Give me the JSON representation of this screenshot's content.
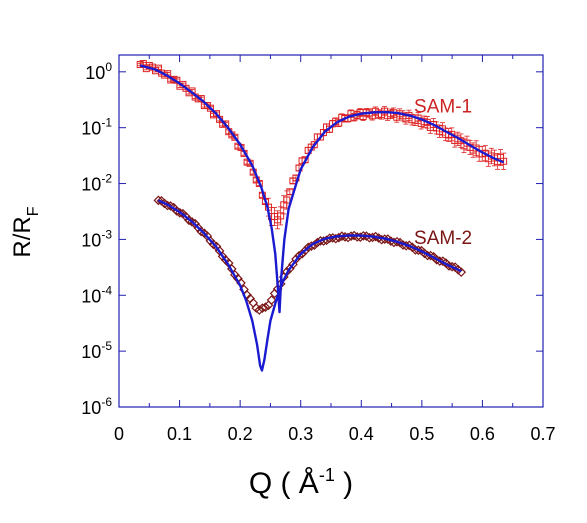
{
  "chart_data": {
    "type": "scatter",
    "title": "",
    "xlabel": {
      "main": "Q ( Å",
      "sup": "-1",
      "close": " )"
    },
    "ylabel": {
      "main": "R/R",
      "sub": "F"
    },
    "xlim": [
      0,
      0.7
    ],
    "ylim": [
      1e-06,
      2
    ],
    "yscale": "log",
    "grid": false,
    "legend": "none",
    "x_ticks": [
      "0",
      "0.1",
      "0.2",
      "0.3",
      "0.4",
      "0.5",
      "0.6",
      "0.7"
    ],
    "x_tick_values": [
      0,
      0.1,
      0.2,
      0.3,
      0.4,
      0.5,
      0.6,
      0.7
    ],
    "y_ticks": [
      {
        "base": "10",
        "exp": "0",
        "value": 1
      },
      {
        "base": "10",
        "exp": "-1",
        "value": 0.1
      },
      {
        "base": "10",
        "exp": "-2",
        "value": 0.01
      },
      {
        "base": "10",
        "exp": "-3",
        "value": 0.001
      },
      {
        "base": "10",
        "exp": "-4",
        "value": 0.0001
      },
      {
        "base": "10",
        "exp": "-5",
        "value": 1e-05
      },
      {
        "base": "10",
        "exp": "-6",
        "value": 1e-06
      }
    ],
    "annotations": [
      {
        "text": "SAM-1",
        "x": 0.535,
        "y": 0.25,
        "color": "#cc2222"
      },
      {
        "text": "SAM-2",
        "x": 0.535,
        "y": 0.0011,
        "color": "#7a1515"
      }
    ],
    "series": [
      {
        "label": "SAM-1",
        "kind": "points_with_errorbars",
        "marker": "square",
        "color": "#dd2222",
        "anchors": [
          [
            0.035,
            1.35
          ],
          [
            0.06,
            1.15
          ],
          [
            0.08,
            0.85
          ],
          [
            0.1,
            0.62
          ],
          [
            0.12,
            0.42
          ],
          [
            0.14,
            0.28
          ],
          [
            0.16,
            0.17
          ],
          [
            0.18,
            0.095
          ],
          [
            0.2,
            0.045
          ],
          [
            0.22,
            0.018
          ],
          [
            0.235,
            0.0075
          ],
          [
            0.245,
            0.0038
          ],
          [
            0.255,
            0.0025
          ],
          [
            0.262,
            0.0022
          ],
          [
            0.272,
            0.0038
          ],
          [
            0.285,
            0.009
          ],
          [
            0.3,
            0.022
          ],
          [
            0.32,
            0.05
          ],
          [
            0.34,
            0.09
          ],
          [
            0.36,
            0.13
          ],
          [
            0.38,
            0.16
          ],
          [
            0.4,
            0.175
          ],
          [
            0.42,
            0.18
          ],
          [
            0.44,
            0.18
          ],
          [
            0.46,
            0.17
          ],
          [
            0.48,
            0.15
          ],
          [
            0.5,
            0.13
          ],
          [
            0.52,
            0.105
          ],
          [
            0.54,
            0.08
          ],
          [
            0.56,
            0.06
          ],
          [
            0.58,
            0.045
          ],
          [
            0.6,
            0.034
          ],
          [
            0.62,
            0.028
          ],
          [
            0.635,
            0.026
          ]
        ],
        "x_range": [
          0.035,
          0.635
        ],
        "n_points": 120
      },
      {
        "label": "SAM-2",
        "kind": "points",
        "marker": "diamond",
        "color": "#7a1515",
        "anchors": [
          [
            0.065,
            0.005
          ],
          [
            0.08,
            0.0042
          ],
          [
            0.1,
            0.0031
          ],
          [
            0.12,
            0.0021
          ],
          [
            0.14,
            0.0013
          ],
          [
            0.16,
            0.00075
          ],
          [
            0.18,
            0.00038
          ],
          [
            0.2,
            0.00017
          ],
          [
            0.215,
            9e-05
          ],
          [
            0.225,
            6.3e-05
          ],
          [
            0.232,
            5.5e-05
          ],
          [
            0.24,
            5.8e-05
          ],
          [
            0.25,
            7.5e-05
          ],
          [
            0.26,
            0.00012
          ],
          [
            0.27,
            0.00019
          ],
          [
            0.28,
            0.00029
          ],
          [
            0.3,
            0.00055
          ],
          [
            0.32,
            0.0008
          ],
          [
            0.34,
            0.00098
          ],
          [
            0.36,
            0.00108
          ],
          [
            0.38,
            0.00113
          ],
          [
            0.4,
            0.00113
          ],
          [
            0.42,
            0.0011
          ],
          [
            0.44,
            0.001
          ],
          [
            0.46,
            0.00088
          ],
          [
            0.48,
            0.00075
          ],
          [
            0.5,
            0.0006
          ],
          [
            0.52,
            0.00047
          ],
          [
            0.54,
            0.00037
          ],
          [
            0.565,
            0.00027
          ]
        ],
        "x_range": [
          0.065,
          0.565
        ],
        "n_points": 100
      },
      {
        "label": "SAM-1 fit",
        "kind": "line",
        "color": "#1a1ad0",
        "points": [
          [
            0.035,
            1.3
          ],
          [
            0.06,
            1.1
          ],
          [
            0.08,
            0.85
          ],
          [
            0.1,
            0.62
          ],
          [
            0.12,
            0.43
          ],
          [
            0.14,
            0.29
          ],
          [
            0.16,
            0.18
          ],
          [
            0.18,
            0.1
          ],
          [
            0.2,
            0.05
          ],
          [
            0.22,
            0.021
          ],
          [
            0.235,
            0.0085
          ],
          [
            0.245,
            0.0038
          ],
          [
            0.252,
            0.0016
          ],
          [
            0.258,
            0.00055
          ],
          [
            0.262,
            0.00015
          ],
          [
            0.265,
            5e-05
          ],
          [
            0.268,
            0.00022
          ],
          [
            0.273,
            0.001
          ],
          [
            0.28,
            0.0035
          ],
          [
            0.29,
            0.008
          ],
          [
            0.3,
            0.018
          ],
          [
            0.32,
            0.045
          ],
          [
            0.34,
            0.085
          ],
          [
            0.36,
            0.125
          ],
          [
            0.38,
            0.158
          ],
          [
            0.4,
            0.178
          ],
          [
            0.42,
            0.188
          ],
          [
            0.44,
            0.19
          ],
          [
            0.46,
            0.183
          ],
          [
            0.48,
            0.165
          ],
          [
            0.5,
            0.14
          ],
          [
            0.52,
            0.112
          ],
          [
            0.54,
            0.085
          ],
          [
            0.56,
            0.065
          ],
          [
            0.58,
            0.048
          ],
          [
            0.6,
            0.036
          ],
          [
            0.62,
            0.028
          ],
          [
            0.635,
            0.024
          ]
        ]
      },
      {
        "label": "SAM-2 fit",
        "kind": "line",
        "color": "#1a1ad0",
        "points": [
          [
            0.065,
            0.005
          ],
          [
            0.08,
            0.0042
          ],
          [
            0.1,
            0.0031
          ],
          [
            0.12,
            0.0021
          ],
          [
            0.14,
            0.0013
          ],
          [
            0.16,
            0.00075
          ],
          [
            0.18,
            0.00036
          ],
          [
            0.2,
            0.00015
          ],
          [
            0.21,
            8e-05
          ],
          [
            0.22,
            3.5e-05
          ],
          [
            0.228,
            1.3e-05
          ],
          [
            0.233,
            5.5e-06
          ],
          [
            0.236,
            4.5e-06
          ],
          [
            0.24,
            7e-06
          ],
          [
            0.245,
            1.6e-05
          ],
          [
            0.25,
            3.5e-05
          ],
          [
            0.26,
            8.5e-05
          ],
          [
            0.27,
            0.00017
          ],
          [
            0.28,
            0.00028
          ],
          [
            0.3,
            0.00055
          ],
          [
            0.32,
            0.00083
          ],
          [
            0.34,
            0.00103
          ],
          [
            0.36,
            0.00113
          ],
          [
            0.38,
            0.00118
          ],
          [
            0.4,
            0.00117
          ],
          [
            0.42,
            0.00112
          ],
          [
            0.44,
            0.00103
          ],
          [
            0.46,
            0.0009
          ],
          [
            0.48,
            0.00076
          ],
          [
            0.5,
            0.00061
          ],
          [
            0.52,
            0.00047
          ],
          [
            0.54,
            0.00036
          ],
          [
            0.565,
            0.00027
          ]
        ]
      }
    ]
  }
}
